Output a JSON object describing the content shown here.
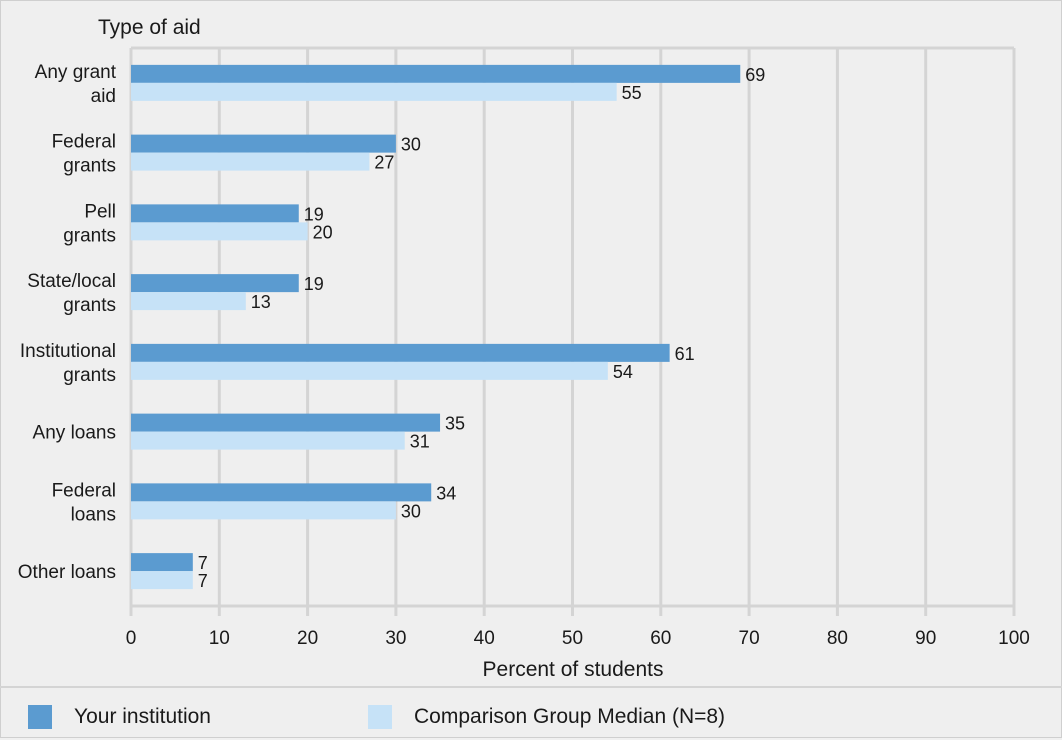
{
  "chart_data": {
    "type": "bar",
    "orientation": "horizontal",
    "y_title": "Type of aid",
    "xlabel": "Percent of students",
    "xlim": [
      0,
      100
    ],
    "xticks": [
      0,
      10,
      20,
      30,
      40,
      50,
      60,
      70,
      80,
      90,
      100
    ],
    "xtick_labels": [
      "0",
      "10",
      "20",
      "30",
      "40",
      "50",
      "60",
      "70",
      "80",
      "90",
      "100"
    ],
    "grid": true,
    "categories": [
      [
        "Any grant",
        "aid"
      ],
      [
        "Federal",
        "grants"
      ],
      [
        "Pell",
        "grants"
      ],
      [
        "State/local",
        "grants"
      ],
      [
        "Institutional",
        "grants"
      ],
      [
        "Any loans"
      ],
      [
        "Federal",
        "loans"
      ],
      [
        "Other loans"
      ]
    ],
    "series": [
      {
        "name": "Your institution",
        "color": "#5b9bd0",
        "values": [
          69,
          30,
          19,
          19,
          61,
          35,
          34,
          7
        ]
      },
      {
        "name": "Comparison Group Median (N=8)",
        "color": "#c6e2f7",
        "values": [
          55,
          27,
          20,
          13,
          54,
          31,
          30,
          7
        ]
      }
    ],
    "legend_position": "bottom"
  },
  "legend": {
    "items": [
      {
        "label": "Your institution",
        "color": "#5b9bd0"
      },
      {
        "label": "Comparison Group Median (N=8)",
        "color": "#c6e2f7"
      }
    ]
  }
}
